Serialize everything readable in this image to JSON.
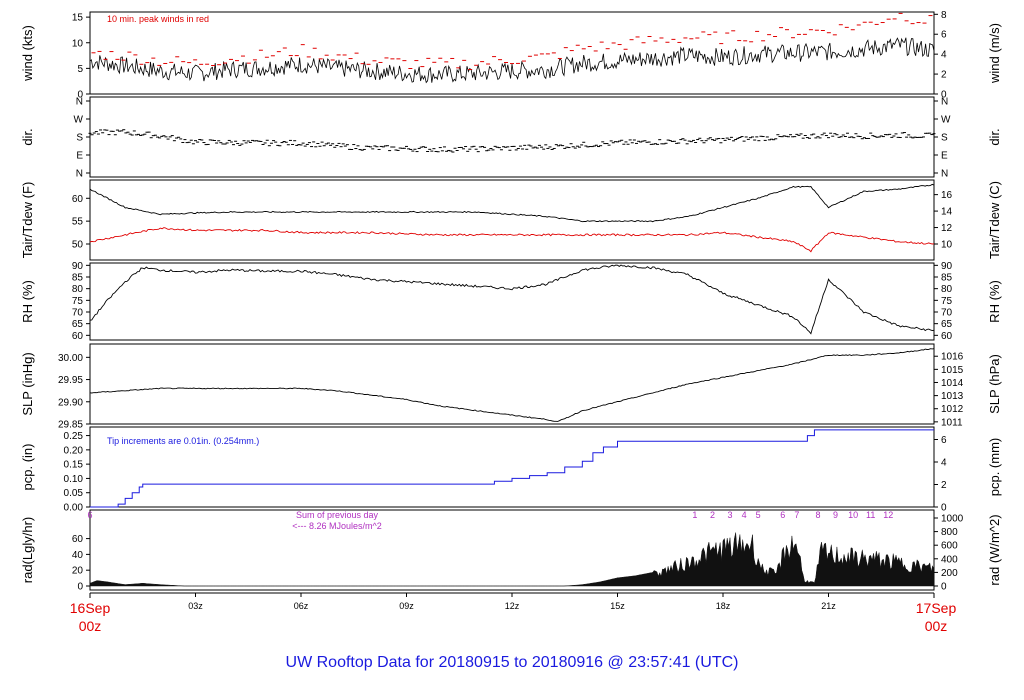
{
  "footer_title": "UW Rooftop Data for 20180915  to  20180916 @ 23:57:41  (UTC)",
  "start_label": [
    "16Sep",
    "00z"
  ],
  "end_label": [
    "17Sep",
    "00z"
  ],
  "time_ticks": [
    "03z",
    "06z",
    "09z",
    "12z",
    "15z",
    "18z",
    "21z"
  ],
  "time_tick_hours": [
    3,
    6,
    9,
    12,
    15,
    18,
    21
  ],
  "colors": {
    "red": "#e00000",
    "blue": "#1a1adf",
    "purple": "#b030c0",
    "black": "#000000"
  },
  "chart_data": [
    {
      "type": "line",
      "name": "wind",
      "ylabel_left": "wind (kts)",
      "ylabel_right": "wind (m/s)",
      "annotation": "10 min. peak winds in red",
      "ylim": [
        0,
        16
      ],
      "yticks_left": [
        0,
        5,
        10,
        15
      ],
      "yticks_right_ms": [
        0,
        2,
        4,
        6,
        8
      ],
      "x_hours": [
        0,
        1,
        2,
        3,
        4,
        5,
        6,
        7,
        8,
        9,
        10,
        11,
        12,
        13,
        14,
        15,
        16,
        17,
        18,
        19,
        20,
        21,
        22,
        23,
        24
      ],
      "series": [
        {
          "values": [
            6.5,
            5.5,
            4.5,
            4.0,
            4.8,
            5.2,
            5.8,
            5.0,
            4.5,
            4.0,
            3.8,
            4.0,
            4.5,
            4.8,
            6.0,
            6.5,
            7.0,
            7.5,
            7.2,
            7.8,
            8.0,
            8.2,
            8.8,
            9.5,
            8.5
          ]
        },
        {
          "values": [
            8.0,
            7.5,
            6.5,
            6.0,
            7.0,
            7.5,
            8.5,
            7.5,
            6.5,
            6.0,
            5.8,
            6.0,
            6.8,
            7.2,
            9.0,
            9.5,
            10.5,
            11.0,
            11.0,
            11.5,
            12.0,
            12.5,
            13.5,
            15.5,
            14.0
          ]
        }
      ]
    },
    {
      "type": "scatter",
      "name": "direction",
      "ylabel_left": "dir.",
      "ylabel_right": "dir.",
      "yticks": [
        "N",
        "E",
        "S",
        "W",
        "N"
      ],
      "ylim_deg": [
        0,
        360
      ],
      "x_hours": [
        0,
        1,
        2,
        3,
        4,
        5,
        6,
        7,
        8,
        9,
        10,
        11,
        12,
        13,
        14,
        15,
        16,
        17,
        18,
        19,
        20,
        21,
        22,
        23,
        24
      ],
      "series": [
        {
          "values": [
            200,
            205,
            185,
            155,
            152,
            150,
            150,
            135,
            125,
            122,
            118,
            120,
            125,
            130,
            140,
            150,
            155,
            160,
            165,
            175,
            180,
            190,
            185,
            190,
            185
          ]
        }
      ]
    },
    {
      "type": "line",
      "name": "temperature",
      "ylabel_left": "Tair/Tdew (F)",
      "ylabel_right": "Tair/Tdew (C)",
      "ylim": [
        46.5,
        64
      ],
      "yticks_left": [
        50,
        55,
        60
      ],
      "yticks_right_c": [
        10,
        12,
        14,
        16
      ],
      "x_hours": [
        0,
        1,
        2,
        3,
        4,
        5,
        6,
        7,
        8,
        9,
        10,
        11,
        12,
        13,
        14,
        15,
        16,
        17,
        18,
        19,
        20,
        20.5,
        21,
        22,
        23,
        24
      ],
      "series": [
        {
          "values": [
            62.0,
            58.0,
            56.5,
            56.8,
            57.0,
            57.0,
            57.0,
            57.0,
            57.0,
            57.0,
            57.0,
            57.0,
            56.5,
            56.0,
            55.0,
            55.0,
            55.0,
            56.0,
            58.0,
            60.0,
            62.5,
            62.5,
            58.0,
            61.5,
            62.0,
            63.0
          ]
        },
        {
          "values": [
            50.5,
            52.0,
            53.5,
            53.0,
            53.0,
            53.0,
            52.5,
            52.5,
            52.5,
            52.2,
            52.0,
            52.0,
            52.0,
            52.0,
            52.0,
            52.0,
            52.0,
            52.0,
            52.5,
            51.5,
            50.5,
            48.5,
            52.5,
            51.5,
            50.5,
            50.0
          ]
        }
      ]
    },
    {
      "type": "line",
      "name": "relative-humidity",
      "ylabel_left": "RH (%)",
      "ylabel_right": "RH (%)",
      "ylim": [
        58,
        91
      ],
      "yticks": [
        60,
        65,
        70,
        75,
        80,
        85,
        90
      ],
      "x_hours": [
        0,
        0.5,
        1,
        1.5,
        2,
        3,
        4,
        5,
        6,
        7,
        8,
        9,
        10,
        11,
        12,
        13,
        14,
        15,
        16,
        17,
        18,
        19,
        20,
        20.5,
        21,
        22,
        23,
        24
      ],
      "series": [
        {
          "values": [
            66,
            75,
            83,
            89,
            88,
            87,
            88,
            87.5,
            87.5,
            86,
            84,
            83,
            82,
            81,
            80,
            82,
            88,
            90,
            89,
            86,
            78,
            73,
            68,
            61,
            84,
            70,
            64,
            62
          ]
        }
      ]
    },
    {
      "type": "line",
      "name": "sea-level-pressure",
      "ylabel_left": "SLP (inHg)",
      "ylabel_right": "SLP (hPa)",
      "ylim": [
        29.85,
        30.03
      ],
      "yticks_left": [
        29.85,
        29.9,
        29.95,
        30.0
      ],
      "yticks_left_labels": [
        "29.85",
        "29.90",
        "29.95",
        "30.00"
      ],
      "yticks_right_hpa": [
        1011,
        1012,
        1013,
        1014,
        1015,
        1016
      ],
      "x_hours": [
        0,
        1,
        2,
        3,
        4,
        5,
        6,
        7,
        8,
        9,
        10,
        11,
        12,
        13,
        13.3,
        14,
        15,
        16,
        17,
        18,
        19,
        20,
        21,
        22,
        23,
        24
      ],
      "series": [
        {
          "values": [
            29.92,
            29.925,
            29.93,
            29.93,
            29.93,
            29.93,
            29.93,
            29.925,
            29.915,
            29.905,
            29.89,
            29.88,
            29.87,
            29.86,
            29.855,
            29.88,
            29.9,
            29.92,
            29.94,
            29.955,
            29.97,
            29.985,
            30.005,
            30.005,
            30.01,
            30.02
          ]
        }
      ]
    },
    {
      "type": "line",
      "name": "precipitation",
      "ylabel_left": "pcp. (in)",
      "ylabel_right": "pcp. (mm)",
      "annotation": "Tip increments are 0.01in. (0.254mm.)",
      "ylim": [
        0,
        0.28
      ],
      "yticks_left": [
        0,
        0.05,
        0.1,
        0.15,
        0.2,
        0.25
      ],
      "yticks_left_labels": [
        "0.00",
        "0.05",
        "0.10",
        "0.15",
        "0.20",
        "0.25"
      ],
      "yticks_right_mm": [
        0,
        2,
        4,
        6
      ],
      "x_hours": [
        0,
        0.6,
        0.8,
        1.0,
        1.2,
        1.4,
        1.5,
        1.6,
        11.0,
        11.5,
        12.0,
        12.5,
        13.0,
        13.5,
        14.0,
        14.3,
        14.6,
        15.0,
        16.0,
        17.0,
        18.0,
        19.0,
        20.3,
        20.4,
        20.6,
        21.0,
        22.0,
        23.0,
        24.0
      ],
      "series": [
        {
          "values": [
            0.0,
            0.0,
            0.01,
            0.03,
            0.05,
            0.07,
            0.08,
            0.08,
            0.08,
            0.09,
            0.1,
            0.11,
            0.12,
            0.14,
            0.16,
            0.19,
            0.21,
            0.23,
            0.23,
            0.23,
            0.23,
            0.23,
            0.23,
            0.25,
            0.27,
            0.27,
            0.27,
            0.27,
            0.27
          ]
        }
      ]
    },
    {
      "type": "area",
      "name": "radiation",
      "ylabel_left": "rad(Lgly/hr)",
      "ylabel_right": "rad (W/m^2)",
      "note_prev_day": [
        "Sum of previous day",
        "<--- 8.26 MJoules/m^2"
      ],
      "hour_markers": [
        "1",
        "2",
        "3",
        "4",
        "5",
        "6",
        "7",
        "8",
        "9",
        "10",
        "11",
        "12"
      ],
      "hour_marker_positions": [
        17.2,
        17.7,
        18.2,
        18.6,
        19.0,
        19.7,
        20.1,
        20.7,
        21.2,
        21.7,
        22.2,
        22.7
      ],
      "start_marker": "6",
      "ylim_wm2": [
        0,
        1000
      ],
      "yticks_left": [
        0,
        20,
        40,
        60
      ],
      "yticks_right_wm2": [
        0,
        200,
        400,
        600,
        800,
        1000
      ],
      "x_hours": [
        0,
        0.2,
        0.5,
        1.0,
        1.5,
        2.0,
        2.7,
        13.5,
        14.0,
        14.5,
        15.0,
        15.5,
        16.0,
        16.5,
        17.0,
        17.5,
        18.0,
        18.5,
        18.8,
        19.1,
        19.5,
        19.8,
        20.1,
        20.3,
        20.6,
        20.8,
        21.0,
        21.5,
        22.0,
        22.5,
        23.0,
        23.5,
        24.0
      ],
      "series": [
        {
          "values": [
            40,
            80,
            60,
            20,
            40,
            20,
            0,
            0,
            20,
            60,
            120,
            150,
            200,
            300,
            400,
            550,
            650,
            700,
            750,
            300,
            200,
            650,
            750,
            100,
            50,
            600,
            550,
            500,
            480,
            450,
            400,
            350,
            300
          ]
        }
      ]
    }
  ]
}
